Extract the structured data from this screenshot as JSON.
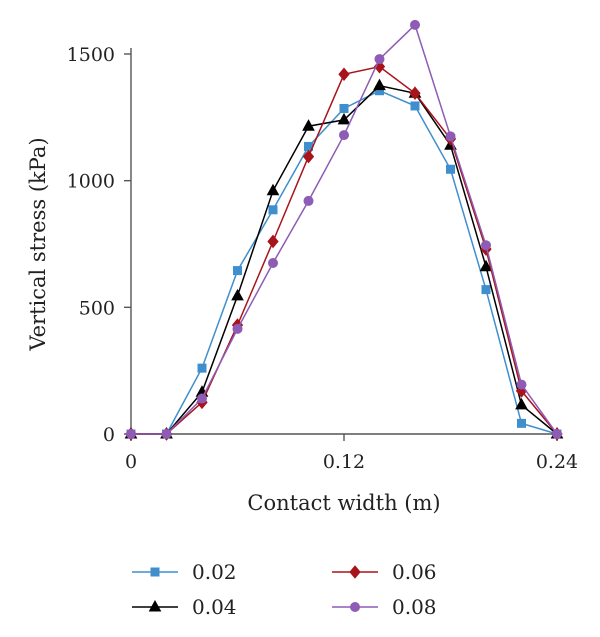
{
  "chart_data": {
    "type": "line",
    "xlabel": "Contact width (m)",
    "ylabel": "Vertical stress (kPa)",
    "xlim": [
      0,
      0.24
    ],
    "ylim": [
      0,
      1500
    ],
    "xticks": [
      "0",
      "0.12",
      "0.24"
    ],
    "yticks": [
      "0",
      "500",
      "1000",
      "1500"
    ],
    "grid": false,
    "legend_position": "bottom",
    "series": [
      {
        "name": "0.02",
        "color": "#3f8fce",
        "marker": "square",
        "x": [
          0,
          0.02,
          0.04,
          0.06,
          0.08,
          0.1,
          0.12,
          0.14,
          0.16,
          0.18,
          0.2,
          0.22,
          0.24
        ],
        "y": [
          0,
          0,
          260,
          645,
          885,
          1135,
          1285,
          1355,
          1295,
          1045,
          570,
          42,
          0
        ]
      },
      {
        "name": "0.04",
        "color": "#000000",
        "marker": "triangle",
        "x": [
          0,
          0.02,
          0.04,
          0.06,
          0.08,
          0.1,
          0.12,
          0.14,
          0.16,
          0.18,
          0.2,
          0.22,
          0.24
        ],
        "y": [
          0,
          0,
          165,
          545,
          960,
          1215,
          1240,
          1375,
          1345,
          1140,
          660,
          115,
          0
        ]
      },
      {
        "name": "0.06",
        "color": "#a8141b",
        "marker": "diamond",
        "x": [
          0,
          0.02,
          0.04,
          0.06,
          0.08,
          0.1,
          0.12,
          0.14,
          0.16,
          0.18,
          0.2,
          0.22,
          0.24
        ],
        "y": [
          0,
          0,
          125,
          430,
          760,
          1095,
          1420,
          1450,
          1345,
          1165,
          730,
          170,
          0
        ]
      },
      {
        "name": "0.08",
        "color": "#8e5bb5",
        "marker": "circle",
        "x": [
          0,
          0.02,
          0.04,
          0.06,
          0.08,
          0.1,
          0.12,
          0.14,
          0.16,
          0.18,
          0.2,
          0.22,
          0.24
        ],
        "y": [
          0,
          0,
          140,
          415,
          675,
          920,
          1180,
          1480,
          1615,
          1175,
          745,
          195,
          0
        ]
      }
    ]
  }
}
